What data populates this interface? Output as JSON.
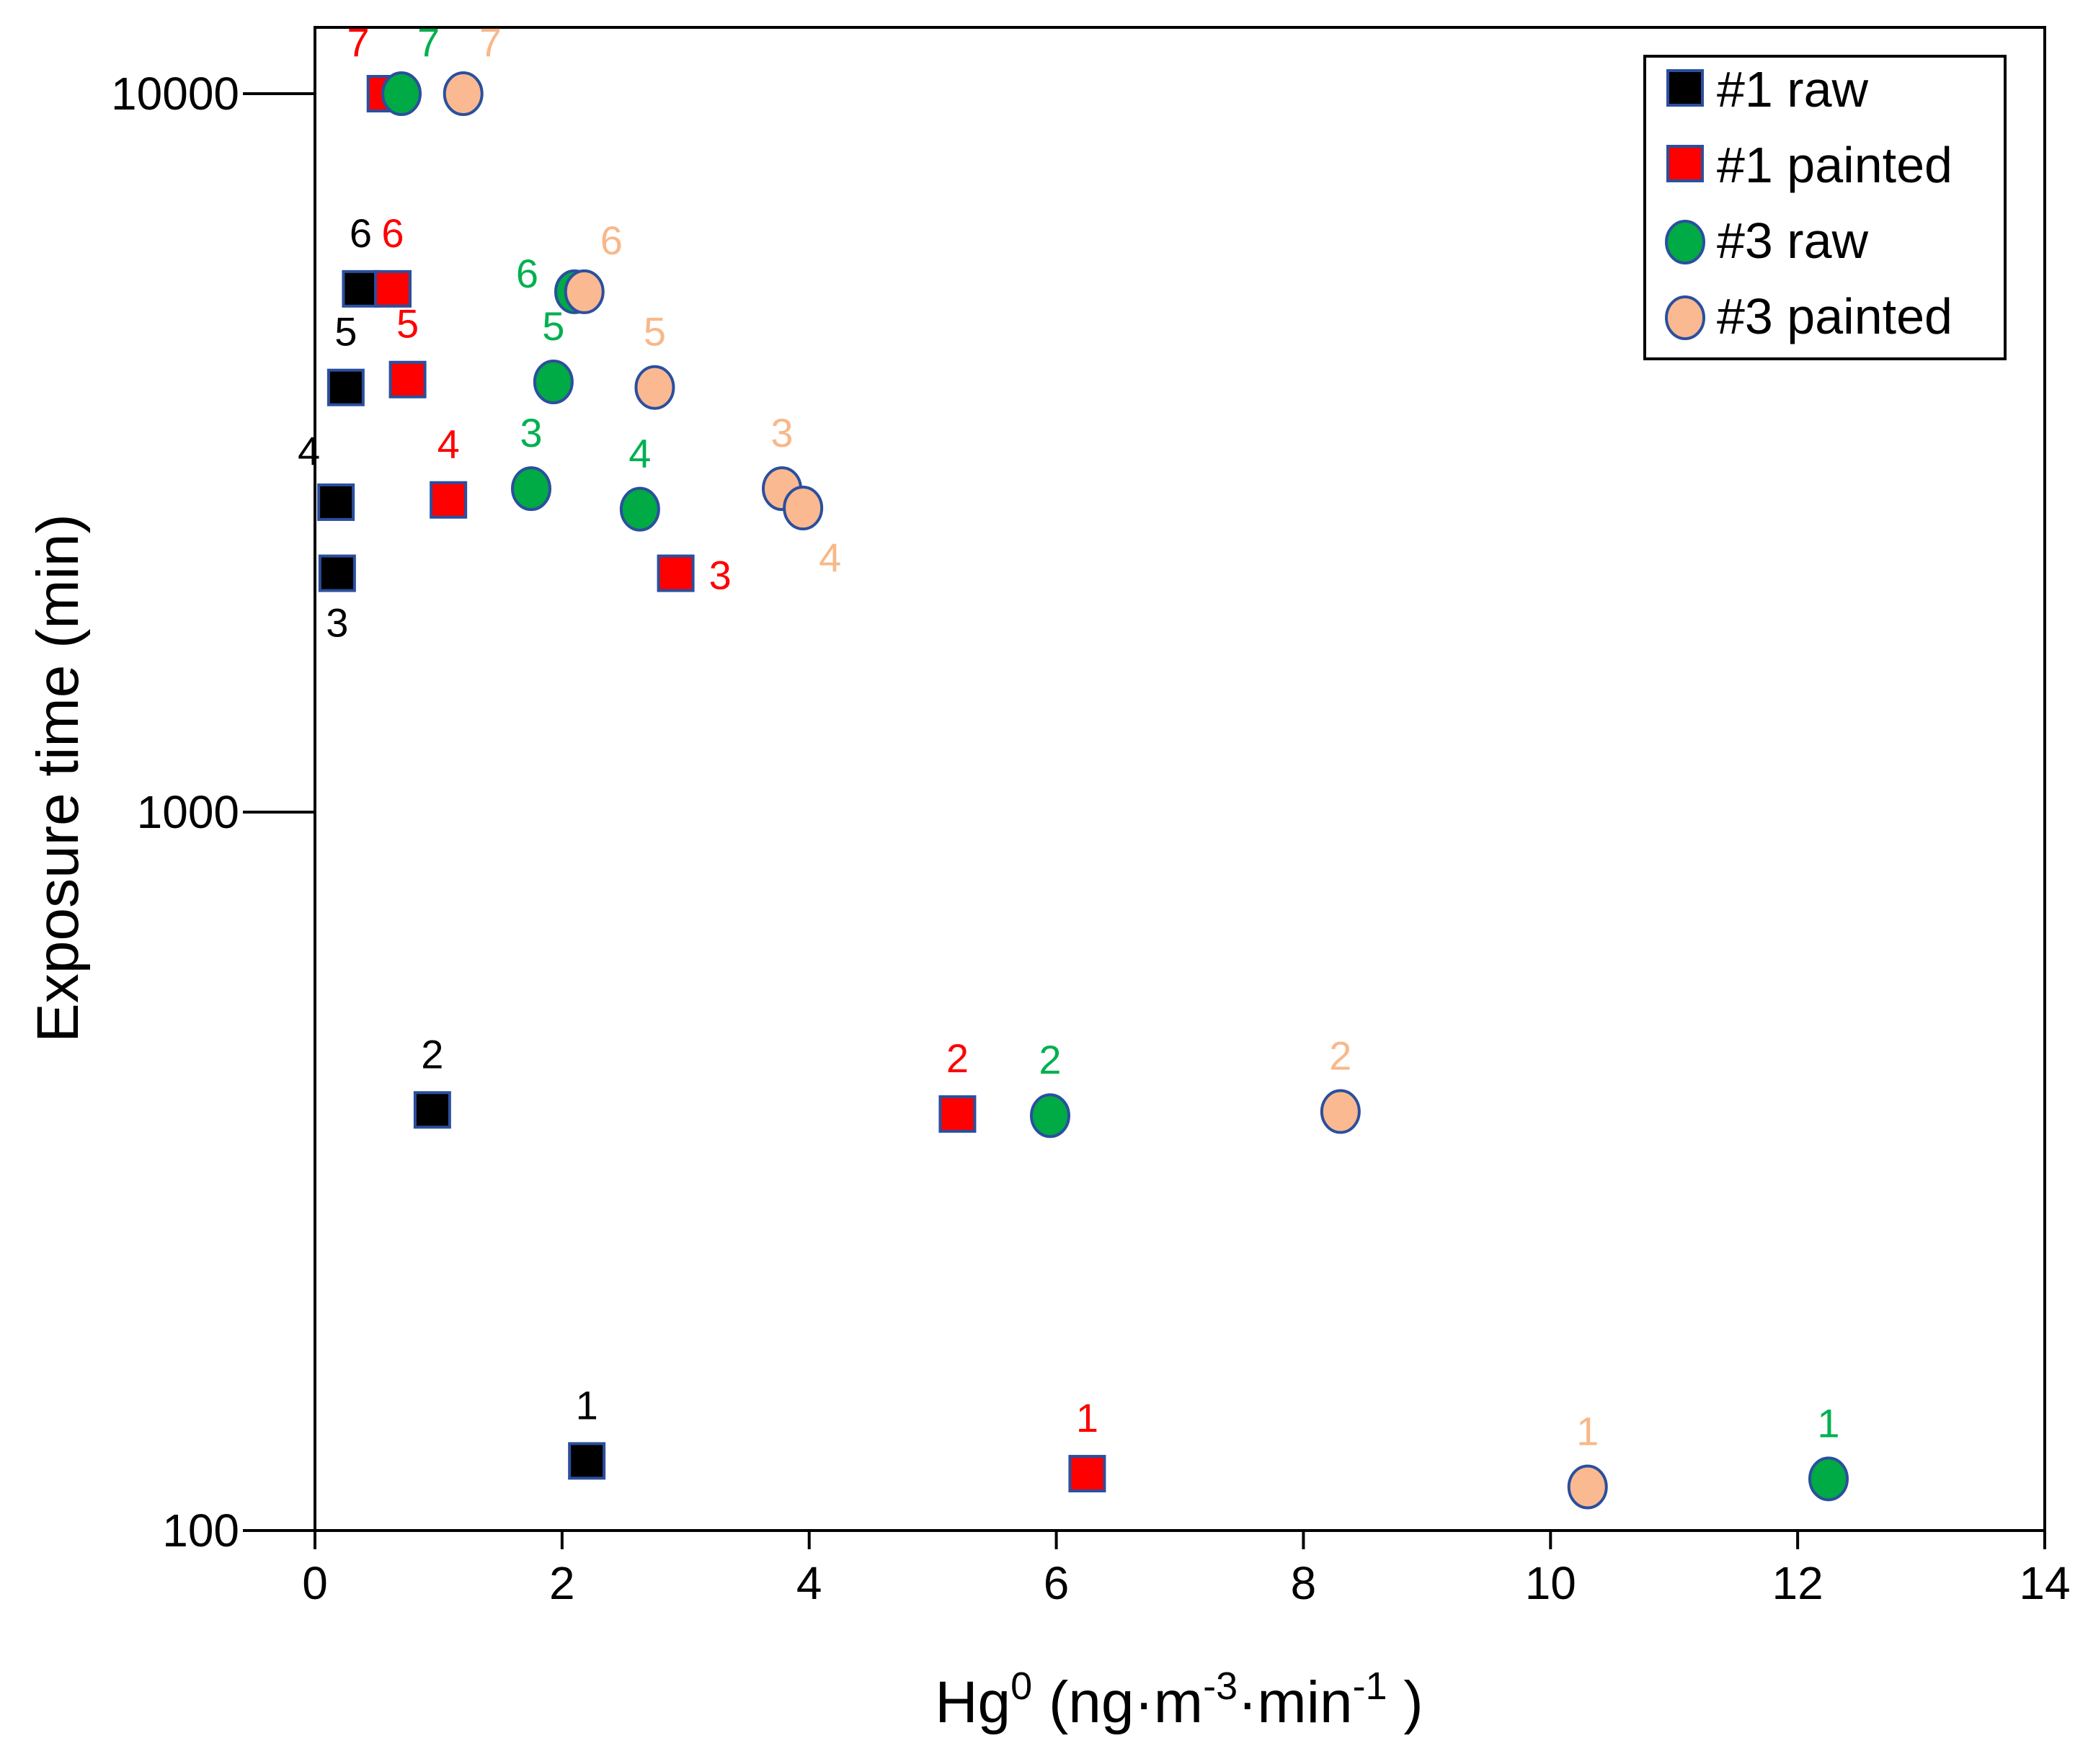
{
  "chart_data": {
    "type": "scatter",
    "title": "",
    "xlabel": {
      "base": "Hg",
      "sup0": "0",
      "part1": " (ng·m",
      "sup1": "-3",
      "part2": "·min",
      "sup2": "-1",
      "part3": " )"
    },
    "ylabel": "Exposure time (min)",
    "xlim": [
      0,
      14
    ],
    "ylim": [
      100,
      10000
    ],
    "yscale": "log",
    "x_ticks": [
      0,
      2,
      4,
      6,
      8,
      10,
      12,
      14
    ],
    "x_tick_labels": [
      "0",
      "2",
      "4",
      "6",
      "8",
      "10",
      "12",
      "14"
    ],
    "y_ticks": [
      100,
      1000,
      10000
    ],
    "y_tick_labels": [
      "100",
      "1000",
      "10000"
    ],
    "legend_position": "top-right",
    "series": [
      {
        "name": "#1 raw",
        "marker": "square",
        "fill": "#000000",
        "label_color": "#000000",
        "points": [
          {
            "x": 2.2,
            "y": 125,
            "label": "1",
            "label_pos": "above"
          },
          {
            "x": 0.95,
            "y": 385,
            "label": "2",
            "label_pos": "above"
          },
          {
            "x": 0.18,
            "y": 2150,
            "label": "3",
            "label_pos": "below"
          },
          {
            "x": 0.17,
            "y": 2700,
            "label": "4",
            "label_pos": "above-left"
          },
          {
            "x": 0.25,
            "y": 3900,
            "label": "5",
            "label_pos": "above"
          },
          {
            "x": 0.37,
            "y": 5350,
            "label": "6",
            "label_pos": "above"
          }
        ]
      },
      {
        "name": "#1 painted",
        "marker": "square",
        "fill": "#ff0000",
        "label_color": "#ff0000",
        "points": [
          {
            "x": 6.25,
            "y": 120,
            "label": "1",
            "label_pos": "above"
          },
          {
            "x": 5.2,
            "y": 380,
            "label": "2",
            "label_pos": "above"
          },
          {
            "x": 2.92,
            "y": 2150,
            "label": "3",
            "label_pos": "right"
          },
          {
            "x": 1.08,
            "y": 2720,
            "label": "4",
            "label_pos": "above"
          },
          {
            "x": 0.75,
            "y": 4000,
            "label": "5",
            "label_pos": "above"
          },
          {
            "x": 0.63,
            "y": 5350,
            "label": "6",
            "label_pos": "above"
          },
          {
            "x": 0.57,
            "y": 10000,
            "label": "7",
            "label_pos": "above-left"
          }
        ]
      },
      {
        "name": "#3 raw",
        "marker": "circle",
        "fill": "#00aa44",
        "label_color": "#00b050",
        "points": [
          {
            "x": 12.25,
            "y": 118,
            "label": "1",
            "label_pos": "above"
          },
          {
            "x": 5.95,
            "y": 378,
            "label": "2",
            "label_pos": "above"
          },
          {
            "x": 1.75,
            "y": 2820,
            "label": "3",
            "label_pos": "above"
          },
          {
            "x": 2.63,
            "y": 2640,
            "label": "4",
            "label_pos": "above"
          },
          {
            "x": 1.93,
            "y": 3970,
            "label": "5",
            "label_pos": "above"
          },
          {
            "x": 2.1,
            "y": 5300,
            "label": "6",
            "label_pos": "left"
          },
          {
            "x": 0.7,
            "y": 10000,
            "label": "7",
            "label_pos": "above-right"
          }
        ]
      },
      {
        "name": "#3 painted",
        "marker": "circle",
        "fill": "#fab990",
        "label_color": "#f8b88a",
        "points": [
          {
            "x": 10.3,
            "y": 115,
            "label": "1",
            "label_pos": "above"
          },
          {
            "x": 8.3,
            "y": 383,
            "label": "2",
            "label_pos": "above"
          },
          {
            "x": 3.78,
            "y": 2820,
            "label": "3",
            "label_pos": "above"
          },
          {
            "x": 3.95,
            "y": 2650,
            "label": "4",
            "label_pos": "below-right"
          },
          {
            "x": 2.75,
            "y": 3900,
            "label": "5",
            "label_pos": "above"
          },
          {
            "x": 2.18,
            "y": 5300,
            "label": "6",
            "label_pos": "above-right"
          },
          {
            "x": 1.2,
            "y": 10000,
            "label": "7",
            "label_pos": "above-right"
          }
        ]
      }
    ]
  }
}
